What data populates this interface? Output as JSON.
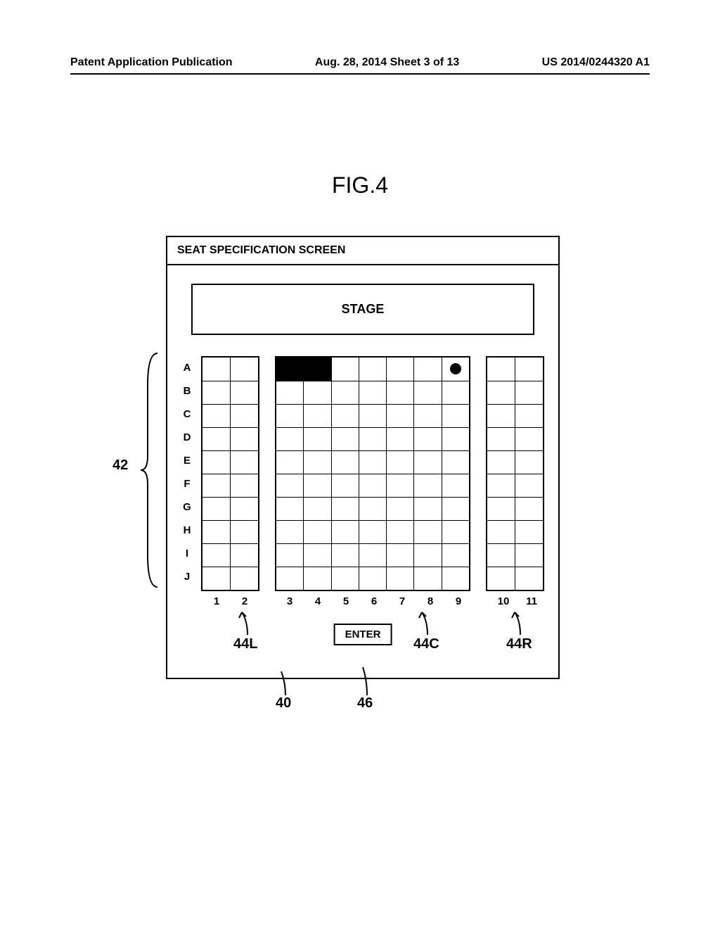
{
  "header": {
    "left": "Patent Application Publication",
    "center": "Aug. 28, 2014  Sheet 3 of 13",
    "right": "US 2014/0244320 A1"
  },
  "figure_label": "FIG.4",
  "panel": {
    "title": "SEAT SPECIFICATION SCREEN",
    "stage_label": "STAGE",
    "enter_label": "ENTER"
  },
  "rows": [
    "A",
    "B",
    "C",
    "D",
    "E",
    "F",
    "G",
    "H",
    "I",
    "J"
  ],
  "row_count": 10,
  "blocks": {
    "left": {
      "cols": [
        1,
        2
      ]
    },
    "center": {
      "cols": [
        3,
        4,
        5,
        6,
        7,
        8,
        9
      ]
    },
    "right": {
      "cols": [
        10,
        11
      ]
    }
  },
  "seat_state": {
    "filled": [
      {
        "row": "A",
        "col": 3
      },
      {
        "row": "A",
        "col": 4
      }
    ],
    "dot": [
      {
        "row": "A",
        "col": 9
      }
    ]
  },
  "callouts": {
    "rows_ref": "42",
    "block_left_ref": "44L",
    "block_center_ref": "44C",
    "block_right_ref": "44R",
    "panel_ref": "40",
    "enter_ref": "46"
  },
  "colors": {
    "line": "#000000",
    "bg": "#ffffff",
    "fill": "#000000"
  }
}
